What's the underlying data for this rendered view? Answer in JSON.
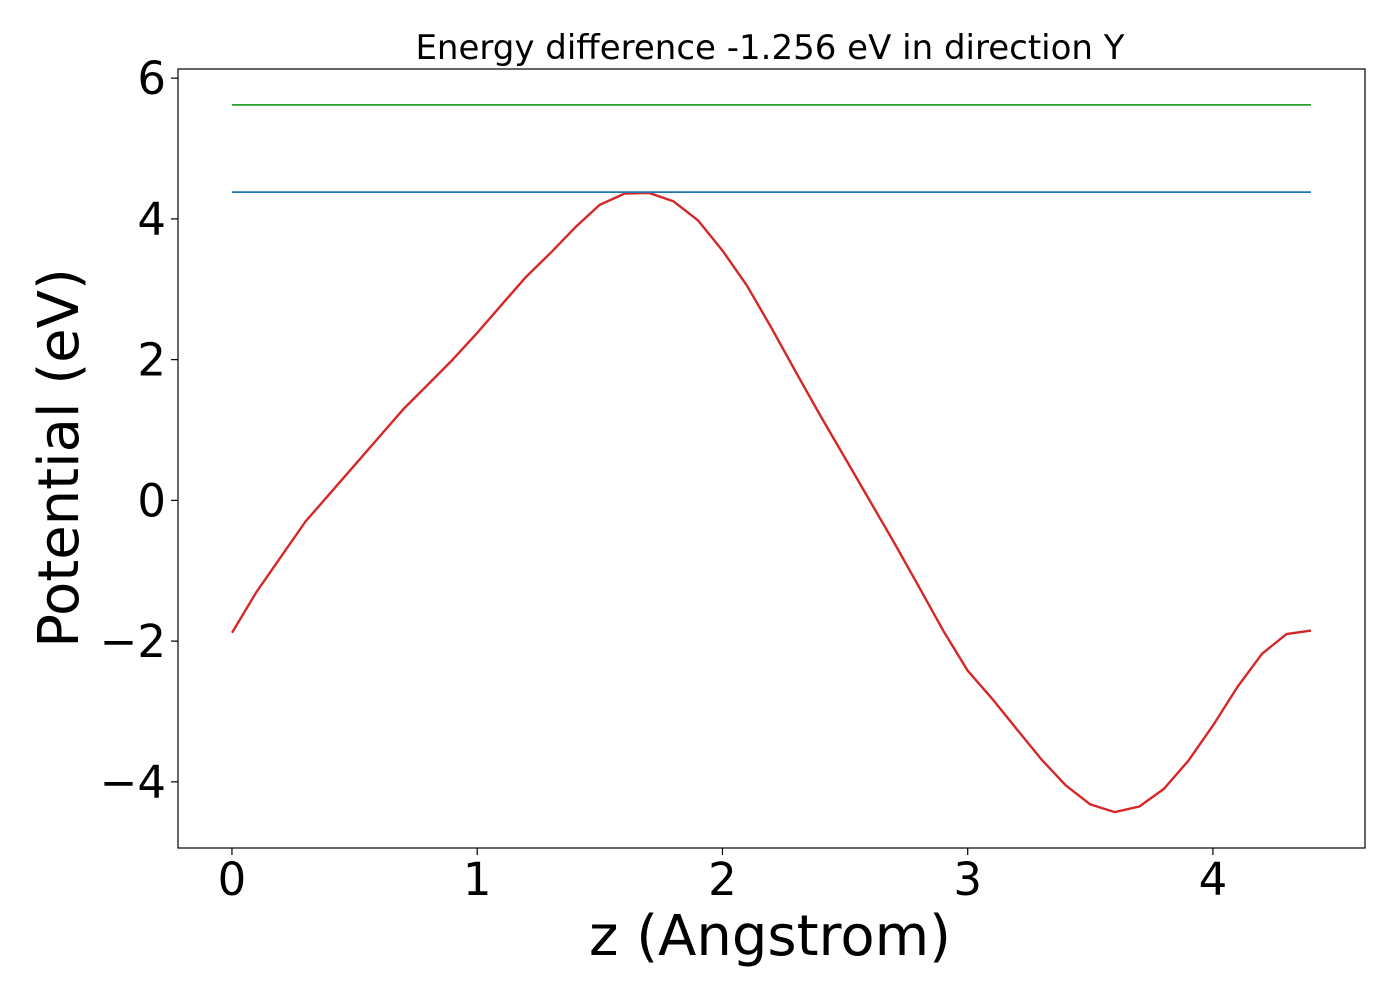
{
  "chart_data": {
    "type": "line",
    "title": "Energy difference -1.256 eV in direction Y",
    "xlabel": "z (Angstrom)",
    "ylabel": "Potential (eV)",
    "xlim": [
      -0.22,
      4.62
    ],
    "ylim": [
      -4.94,
      6.13
    ],
    "x_ticks": [
      0,
      1,
      2,
      3,
      4
    ],
    "x_tick_labels": [
      "0",
      "1",
      "2",
      "3",
      "4"
    ],
    "y_ticks": [
      -4,
      -2,
      0,
      2,
      4,
      6
    ],
    "y_tick_labels": [
      "−4",
      "−2",
      "0",
      "2",
      "4",
      "6"
    ],
    "grid": false,
    "series": [
      {
        "color": "#d62728",
        "x": [
          0.0,
          0.1,
          0.2,
          0.3,
          0.4,
          0.5,
          0.6,
          0.7,
          0.8,
          0.9,
          1.0,
          1.1,
          1.2,
          1.3,
          1.4,
          1.5,
          1.6,
          1.7,
          1.8,
          1.9,
          2.0,
          2.1,
          2.2,
          2.3,
          2.4,
          2.5,
          2.6,
          2.7,
          2.8,
          2.9,
          3.0,
          3.1,
          3.2,
          3.3,
          3.4,
          3.5,
          3.6,
          3.7,
          3.8,
          3.9,
          4.0,
          4.1,
          4.2,
          4.3,
          4.4
        ],
        "y": [
          -1.88,
          -1.3,
          -0.8,
          -0.3,
          0.1,
          0.5,
          0.9,
          1.3,
          1.65,
          2.0,
          2.38,
          2.78,
          3.18,
          3.52,
          3.88,
          4.2,
          4.36,
          4.37,
          4.25,
          3.98,
          3.55,
          3.05,
          2.45,
          1.82,
          1.2,
          0.6,
          0.0,
          -0.6,
          -1.22,
          -1.85,
          -2.42,
          -2.82,
          -3.25,
          -3.68,
          -4.05,
          -4.32,
          -4.43,
          -4.35,
          -4.1,
          -3.7,
          -3.2,
          -2.65,
          -2.18,
          -1.9,
          -1.85
        ]
      },
      {
        "color": "#1f77b4",
        "x": [
          0.0,
          4.4
        ],
        "y": [
          4.38,
          4.38
        ]
      },
      {
        "color": "#2ca02c",
        "x": [
          0.0,
          4.4
        ],
        "y": [
          5.62,
          5.62
        ]
      }
    ]
  }
}
